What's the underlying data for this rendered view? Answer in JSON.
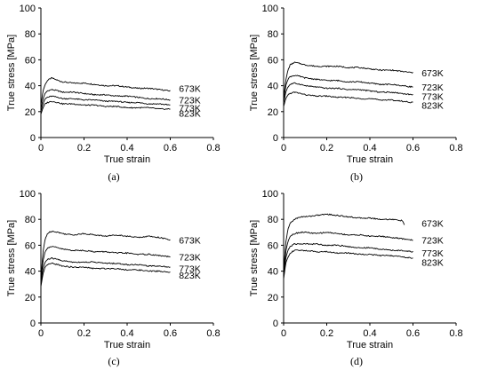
{
  "chart_data": [
    {
      "type": "line",
      "panel_label": "(a)",
      "xlabel": "True strain",
      "ylabel": "True stress [MPa]",
      "xlim": [
        0,
        0.8
      ],
      "ylim": [
        0,
        100
      ],
      "xticks": [
        "0",
        "0.2",
        "0.4",
        "0.6",
        "0.8"
      ],
      "yticks": [
        "0",
        "20",
        "40",
        "60",
        "80",
        "100"
      ],
      "grid": false,
      "series": [
        {
          "name": "673K",
          "x": [
            0,
            0.01,
            0.02,
            0.03,
            0.05,
            0.08,
            0.1,
            0.15,
            0.2,
            0.25,
            0.3,
            0.35,
            0.4,
            0.45,
            0.5,
            0.55,
            0.6
          ],
          "y": [
            25,
            36,
            41,
            44,
            46,
            44,
            43,
            42,
            42,
            41,
            40,
            40,
            39,
            38,
            38,
            37,
            36
          ]
        },
        {
          "name": "723K",
          "x": [
            0,
            0.01,
            0.02,
            0.03,
            0.05,
            0.08,
            0.1,
            0.15,
            0.2,
            0.25,
            0.3,
            0.35,
            0.4,
            0.45,
            0.5,
            0.55,
            0.6
          ],
          "y": [
            22,
            30,
            34,
            36,
            37,
            36,
            35,
            35,
            34,
            33,
            33,
            32,
            32,
            31,
            30,
            30,
            29
          ]
        },
        {
          "name": "773K",
          "x": [
            0,
            0.01,
            0.02,
            0.03,
            0.05,
            0.08,
            0.1,
            0.15,
            0.2,
            0.25,
            0.3,
            0.35,
            0.4,
            0.45,
            0.5,
            0.55,
            0.6
          ],
          "y": [
            20,
            26,
            30,
            31,
            32,
            31,
            30,
            30,
            29,
            29,
            28,
            28,
            27,
            27,
            26,
            26,
            25
          ]
        },
        {
          "name": "823K",
          "x": [
            0,
            0.01,
            0.02,
            0.03,
            0.05,
            0.08,
            0.1,
            0.15,
            0.2,
            0.25,
            0.3,
            0.35,
            0.4,
            0.45,
            0.5,
            0.55,
            0.6
          ],
          "y": [
            18,
            23,
            26,
            27,
            28,
            27,
            26,
            26,
            25,
            25,
            24,
            24,
            23,
            23,
            23,
            22,
            22
          ]
        }
      ]
    },
    {
      "type": "line",
      "panel_label": "(b)",
      "xlabel": "True strain",
      "ylabel": "True stress [MPa]",
      "xlim": [
        0,
        0.8
      ],
      "ylim": [
        0,
        100
      ],
      "xticks": [
        "0",
        "0.2",
        "0.4",
        "0.6",
        "0.8"
      ],
      "yticks": [
        "0",
        "20",
        "40",
        "60",
        "80",
        "100"
      ],
      "grid": false,
      "series": [
        {
          "name": "673K",
          "x": [
            0,
            0.01,
            0.02,
            0.03,
            0.05,
            0.08,
            0.1,
            0.15,
            0.2,
            0.25,
            0.3,
            0.35,
            0.4,
            0.45,
            0.5,
            0.55,
            0.6
          ],
          "y": [
            30,
            44,
            52,
            56,
            58,
            57,
            56,
            55,
            55,
            55,
            54,
            54,
            53,
            52,
            52,
            51,
            50
          ]
        },
        {
          "name": "723K",
          "x": [
            0,
            0.01,
            0.02,
            0.03,
            0.05,
            0.08,
            0.1,
            0.15,
            0.2,
            0.25,
            0.3,
            0.35,
            0.4,
            0.45,
            0.5,
            0.55,
            0.6
          ],
          "y": [
            28,
            40,
            45,
            47,
            48,
            47,
            46,
            45,
            44,
            44,
            43,
            43,
            42,
            41,
            41,
            40,
            39
          ]
        },
        {
          "name": "773K",
          "x": [
            0,
            0.01,
            0.02,
            0.03,
            0.05,
            0.08,
            0.1,
            0.15,
            0.2,
            0.25,
            0.3,
            0.35,
            0.4,
            0.45,
            0.5,
            0.55,
            0.6
          ],
          "y": [
            26,
            35,
            39,
            41,
            42,
            41,
            40,
            39,
            38,
            38,
            37,
            37,
            36,
            35,
            35,
            34,
            33
          ]
        },
        {
          "name": "823K",
          "x": [
            0,
            0.01,
            0.02,
            0.03,
            0.05,
            0.08,
            0.1,
            0.15,
            0.2,
            0.25,
            0.3,
            0.35,
            0.4,
            0.45,
            0.5,
            0.55,
            0.6
          ],
          "y": [
            24,
            30,
            33,
            34,
            35,
            34,
            33,
            32,
            32,
            31,
            31,
            30,
            30,
            29,
            29,
            28,
            27
          ]
        }
      ]
    },
    {
      "type": "line",
      "panel_label": "(c)",
      "xlabel": "True strain",
      "ylabel": "True stress [MPa]",
      "xlim": [
        0,
        0.8
      ],
      "ylim": [
        0,
        100
      ],
      "xticks": [
        "0",
        "0.2",
        "0.4",
        "0.6",
        "0.8"
      ],
      "yticks": [
        "0",
        "20",
        "40",
        "60",
        "80",
        "100"
      ],
      "grid": false,
      "series": [
        {
          "name": "673K",
          "x": [
            0,
            0.01,
            0.02,
            0.03,
            0.05,
            0.08,
            0.1,
            0.15,
            0.2,
            0.25,
            0.3,
            0.35,
            0.4,
            0.45,
            0.5,
            0.55,
            0.6
          ],
          "y": [
            34,
            55,
            65,
            69,
            71,
            70,
            69,
            68,
            69,
            68,
            67,
            68,
            67,
            66,
            67,
            66,
            64
          ]
        },
        {
          "name": "723K",
          "x": [
            0,
            0.01,
            0.02,
            0.03,
            0.05,
            0.08,
            0.1,
            0.15,
            0.2,
            0.25,
            0.3,
            0.35,
            0.4,
            0.45,
            0.5,
            0.55,
            0.6
          ],
          "y": [
            32,
            48,
            55,
            58,
            59,
            58,
            57,
            56,
            56,
            55,
            55,
            54,
            54,
            53,
            53,
            52,
            51
          ]
        },
        {
          "name": "773K",
          "x": [
            0,
            0.01,
            0.02,
            0.03,
            0.05,
            0.08,
            0.1,
            0.15,
            0.2,
            0.25,
            0.3,
            0.35,
            0.4,
            0.45,
            0.5,
            0.55,
            0.6
          ],
          "y": [
            30,
            42,
            47,
            49,
            50,
            49,
            48,
            47,
            47,
            47,
            46,
            46,
            45,
            45,
            44,
            44,
            43
          ]
        },
        {
          "name": "823K",
          "x": [
            0,
            0.01,
            0.02,
            0.03,
            0.05,
            0.08,
            0.1,
            0.15,
            0.2,
            0.25,
            0.3,
            0.35,
            0.4,
            0.45,
            0.5,
            0.55,
            0.6
          ],
          "y": [
            28,
            38,
            43,
            45,
            46,
            45,
            44,
            43,
            43,
            42,
            42,
            42,
            41,
            41,
            40,
            40,
            39
          ]
        }
      ]
    },
    {
      "type": "line",
      "panel_label": "(d)",
      "xlabel": "True strain",
      "ylabel": "True stress [MPa]",
      "xlim": [
        0,
        0.8
      ],
      "ylim": [
        0,
        100
      ],
      "xticks": [
        "0",
        "0.2",
        "0.4",
        "0.6",
        "0.8"
      ],
      "yticks": [
        "0",
        "20",
        "40",
        "60",
        "80",
        "100"
      ],
      "grid": false,
      "series": [
        {
          "name": "673K",
          "x": [
            0,
            0.01,
            0.02,
            0.03,
            0.05,
            0.08,
            0.1,
            0.15,
            0.2,
            0.25,
            0.3,
            0.35,
            0.4,
            0.45,
            0.5,
            0.55,
            0.56
          ],
          "y": [
            40,
            62,
            72,
            77,
            80,
            82,
            82,
            83,
            84,
            83,
            82,
            81,
            81,
            80,
            80,
            79,
            76
          ]
        },
        {
          "name": "723K",
          "x": [
            0,
            0.01,
            0.02,
            0.03,
            0.05,
            0.08,
            0.1,
            0.15,
            0.2,
            0.25,
            0.3,
            0.35,
            0.4,
            0.45,
            0.5,
            0.55,
            0.6
          ],
          "y": [
            38,
            55,
            63,
            67,
            69,
            70,
            70,
            69,
            70,
            69,
            68,
            68,
            67,
            67,
            66,
            65,
            64
          ]
        },
        {
          "name": "773K",
          "x": [
            0,
            0.01,
            0.02,
            0.03,
            0.05,
            0.08,
            0.1,
            0.15,
            0.2,
            0.25,
            0.3,
            0.35,
            0.4,
            0.45,
            0.5,
            0.55,
            0.6
          ],
          "y": [
            36,
            50,
            56,
            59,
            61,
            61,
            61,
            61,
            60,
            60,
            59,
            58,
            58,
            57,
            56,
            56,
            55
          ]
        },
        {
          "name": "823K",
          "x": [
            0,
            0.01,
            0.02,
            0.03,
            0.05,
            0.08,
            0.1,
            0.15,
            0.2,
            0.25,
            0.3,
            0.35,
            0.4,
            0.45,
            0.5,
            0.55,
            0.6
          ],
          "y": [
            34,
            46,
            51,
            54,
            56,
            56,
            56,
            55,
            55,
            54,
            54,
            53,
            53,
            52,
            52,
            51,
            50
          ]
        }
      ]
    }
  ]
}
